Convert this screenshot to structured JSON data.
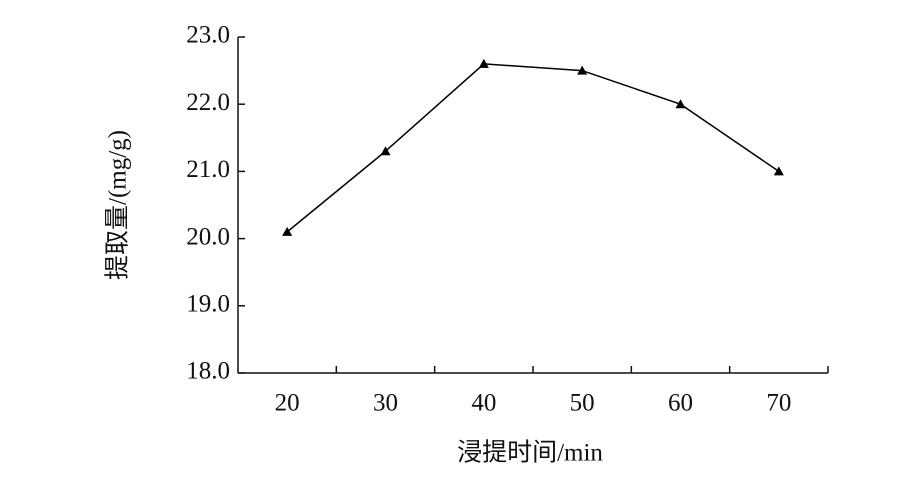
{
  "chart_data": {
    "type": "line",
    "x_label": "浸提时间/min",
    "y_label": "提取量/(mg/g)",
    "categories": [
      "20",
      "30",
      "40",
      "50",
      "60",
      "70"
    ],
    "series": [
      {
        "color": "#000000",
        "values": [
          20.1,
          21.3,
          22.6,
          22.5,
          22.0,
          21.0
        ]
      }
    ],
    "ylim": [
      18,
      23
    ],
    "yticks": [
      {
        "value": 18,
        "label": "18.0"
      },
      {
        "value": 19,
        "label": "19.0"
      },
      {
        "value": 20,
        "label": "20.0"
      },
      {
        "value": 21,
        "label": "21.0"
      },
      {
        "value": 22,
        "label": "22.0"
      },
      {
        "value": 23,
        "label": "23.0"
      }
    ],
    "grid": false
  }
}
